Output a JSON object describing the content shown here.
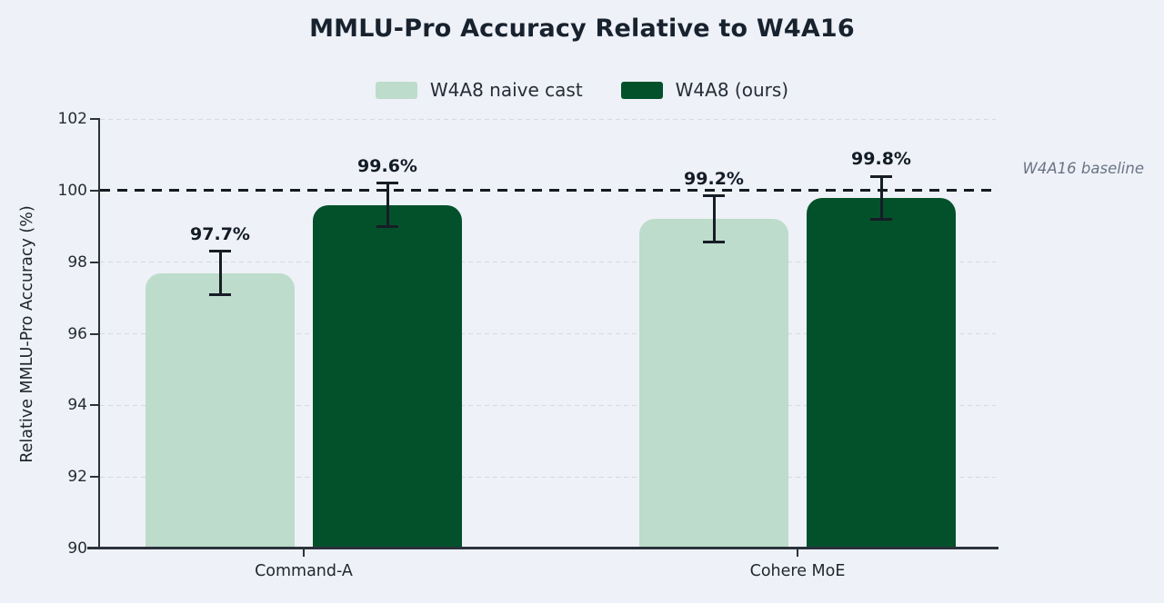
{
  "chart_data": {
    "type": "bar",
    "title": "MMLU-Pro Accuracy Relative to W4A16",
    "ylabel": "Relative MMLU-Pro Accuracy (%)",
    "xlabel": "",
    "ylim": [
      90,
      102
    ],
    "yticks": [
      102,
      100,
      98,
      96,
      94,
      92,
      90
    ],
    "categories": [
      "Command-A",
      "Cohere MoE"
    ],
    "series": [
      {
        "name": "W4A8 naive cast",
        "color": "#bddccb",
        "values": [
          97.7,
          99.2
        ],
        "errors": [
          0.6,
          0.65
        ],
        "labels": [
          "97.7%",
          "99.2%"
        ]
      },
      {
        "name": "W4A8 (ours)",
        "color": "#02512b",
        "values": [
          99.6,
          99.8
        ],
        "errors": [
          0.6,
          0.6
        ],
        "labels": [
          "99.6%",
          "99.8%"
        ]
      }
    ],
    "baseline": {
      "value": 100,
      "label": "W4A16 baseline"
    },
    "grid": "horizontal-dashed",
    "legend_position": "top-center",
    "colors": {
      "background": "#eef1f7",
      "title_text": "#18222f",
      "axis_spine": "#2b323c",
      "gridline": "#d6dae2",
      "baseline_dash": "#141a22",
      "error_bar": "#171d26",
      "value_label_text": "#121b26",
      "baseline_label_text": "#6b7486"
    }
  }
}
